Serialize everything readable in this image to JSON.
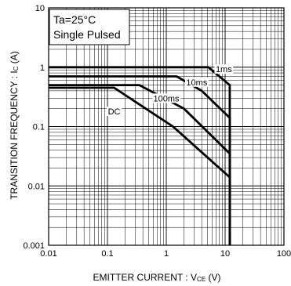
{
  "chart_data": {
    "type": "line",
    "title": "",
    "xscale": "log",
    "yscale": "log",
    "xlim": [
      0.01,
      100
    ],
    "ylim": [
      0.001,
      10
    ],
    "grid": true,
    "xlabel": {
      "main": "EMITTER  CURRENT : V",
      "sub": "CE",
      "unit": " (V)"
    },
    "ylabel": {
      "main": "TRANSITION FREQUENCY : I",
      "sub": "C",
      "unit": " (A)"
    },
    "x_ticks": [
      {
        "value": 0.01,
        "label": "0.01"
      },
      {
        "value": 0.1,
        "label": "0.1"
      },
      {
        "value": 1,
        "label": "1"
      },
      {
        "value": 10,
        "label": "10"
      },
      {
        "value": 100,
        "label": "100"
      }
    ],
    "y_ticks": [
      {
        "value": 10,
        "label": "10"
      },
      {
        "value": 1,
        "label": "1"
      },
      {
        "value": 0.1,
        "label": "0.1"
      },
      {
        "value": 0.01,
        "label": "0.01"
      },
      {
        "value": 0.001,
        "label": "0.001"
      }
    ],
    "conditions": [
      "Ta=25°C",
      "Single Pulsed"
    ],
    "series": [
      {
        "name": "1ms",
        "points": [
          [
            0.01,
            1.0
          ],
          [
            5.2,
            1.0
          ],
          [
            12,
            0.5
          ],
          [
            12,
            0.001
          ]
        ],
        "label_at": [
          9.5,
          0.93
        ]
      },
      {
        "name": "10ms",
        "points": [
          [
            0.01,
            0.7
          ],
          [
            1.5,
            0.7
          ],
          [
            4.0,
            0.4
          ],
          [
            12,
            0.14
          ],
          [
            12,
            0.001
          ]
        ],
        "label_at": [
          3.3,
          0.56
        ]
      },
      {
        "name": "100ms",
        "points": [
          [
            0.01,
            0.5
          ],
          [
            0.35,
            0.5
          ],
          [
            2.0,
            0.2
          ],
          [
            12,
            0.035
          ],
          [
            12,
            0.001
          ]
        ],
        "label_at": [
          1.0,
          0.3
        ]
      },
      {
        "name": "DC",
        "points": [
          [
            0.01,
            0.45
          ],
          [
            0.13,
            0.45
          ],
          [
            1.3,
            0.1
          ],
          [
            12,
            0.014
          ],
          [
            12,
            0.001
          ]
        ],
        "label_at": [
          0.13,
          0.18
        ]
      }
    ]
  }
}
